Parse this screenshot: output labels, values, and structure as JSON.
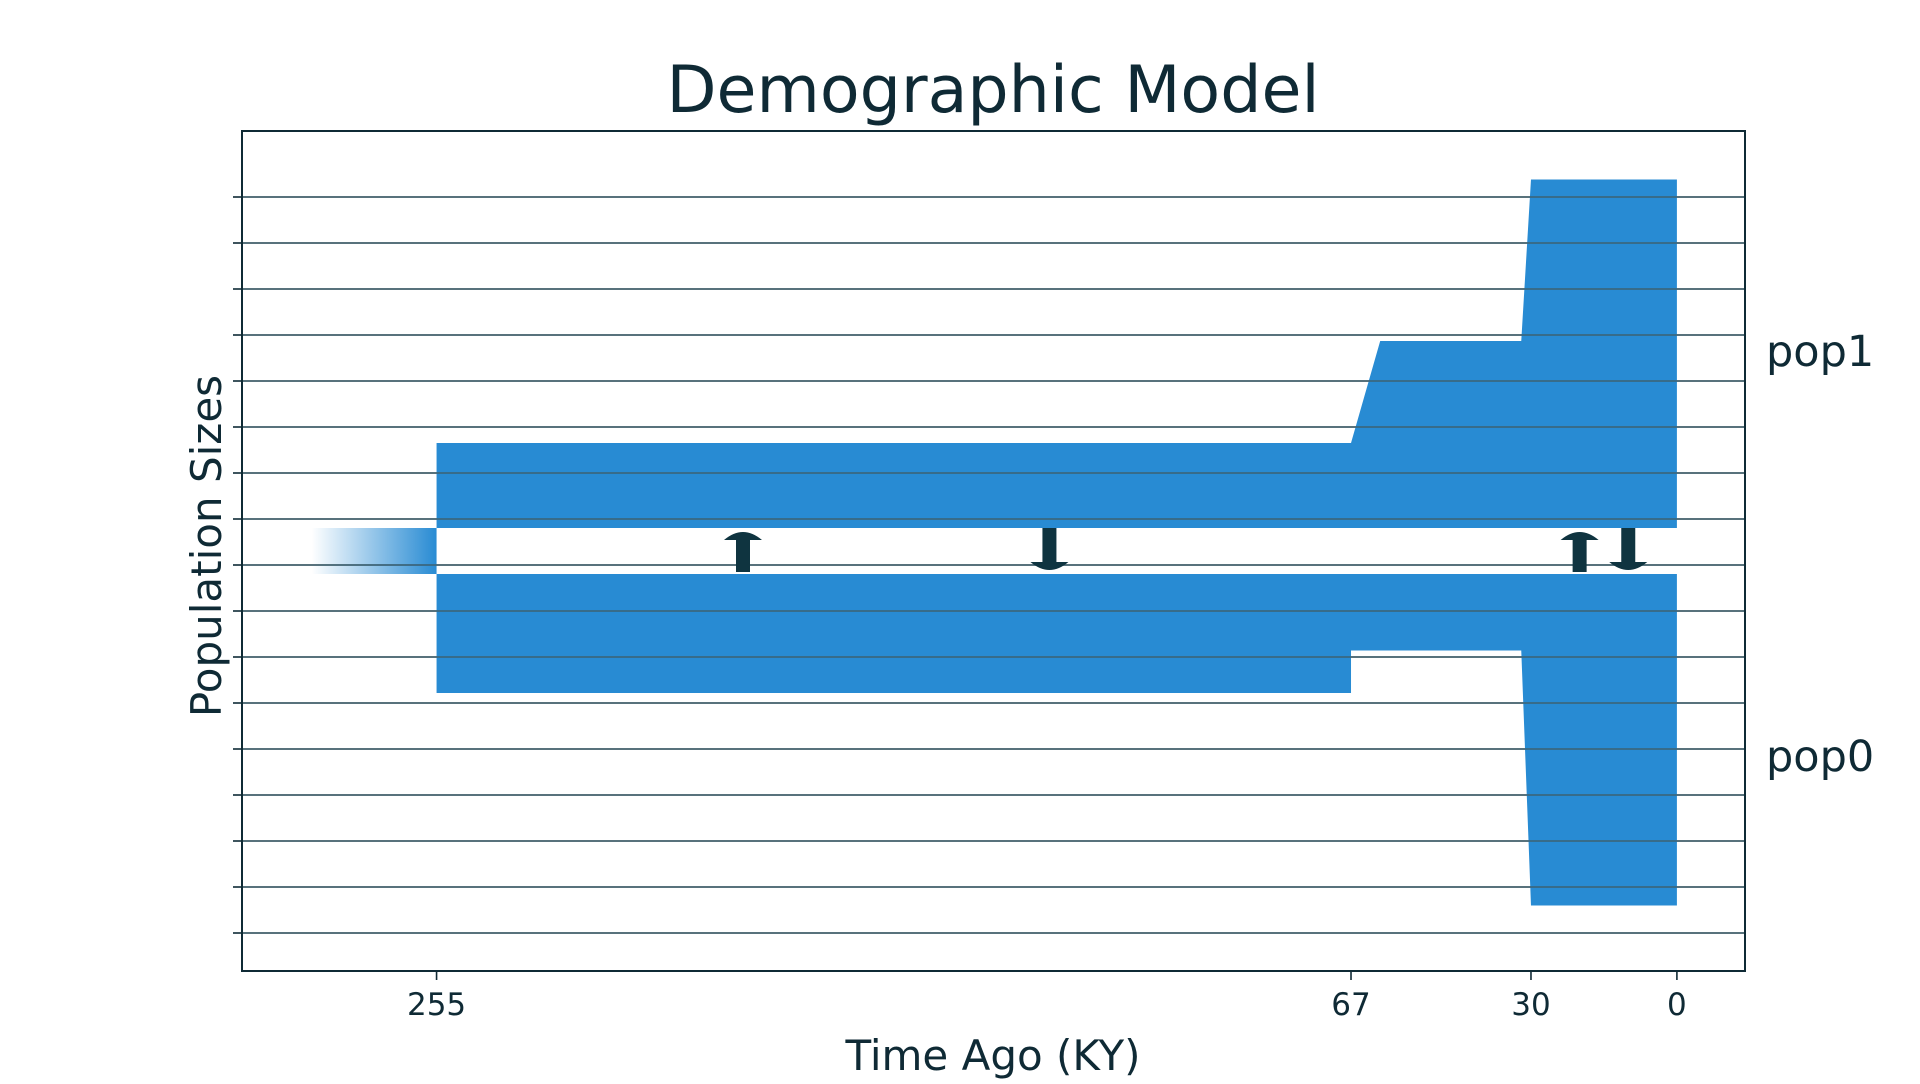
{
  "chart_data": {
    "type": "demographic-model",
    "title": "Demographic Model",
    "xlabel": "Time Ago (KY)",
    "ylabel": "Population Sizes",
    "x_ticks": [
      255,
      67,
      30,
      0
    ],
    "x_range": [
      295,
      -14
    ],
    "gridlines": true,
    "colors": {
      "population": "#288bd3",
      "frame": "#0f2a35",
      "grid": "#3f5d68",
      "arrow": "#0f3440"
    },
    "ancestral": {
      "from_time": 255,
      "fades_into_past": true
    },
    "populations": [
      {
        "name": "pop1",
        "label": "pop1",
        "epochs": [
          {
            "time_start": 255,
            "time_end": 67,
            "size_start": 1.0,
            "size_end": 1.0
          },
          {
            "time_start": 67,
            "time_end": 61,
            "size_start": 1.0,
            "size_end": 2.2
          },
          {
            "time_start": 61,
            "time_end": 32,
            "size_start": 2.2,
            "size_end": 2.2
          },
          {
            "time_start": 32,
            "time_end": 30,
            "size_start": 2.2,
            "size_end": 4.1
          },
          {
            "time_start": 30,
            "time_end": 0,
            "size_start": 4.1,
            "size_end": 4.1
          }
        ]
      },
      {
        "name": "pop0",
        "label": "pop0",
        "epochs": [
          {
            "time_start": 255,
            "time_end": 67,
            "size_start": 1.4,
            "size_end": 1.4
          },
          {
            "time_start": 67,
            "time_end": 32,
            "size_start": 0.9,
            "size_end": 0.9
          },
          {
            "time_start": 32,
            "time_end": 30,
            "size_start": 0.9,
            "size_end": 3.9
          },
          {
            "time_start": 30,
            "time_end": 0,
            "size_start": 3.9,
            "size_end": 3.9
          }
        ]
      }
    ],
    "migrations": [
      {
        "time": 192,
        "direction": "up"
      },
      {
        "time": 129,
        "direction": "down"
      },
      {
        "time": 20,
        "direction": "up"
      },
      {
        "time": 10,
        "direction": "down"
      }
    ]
  }
}
